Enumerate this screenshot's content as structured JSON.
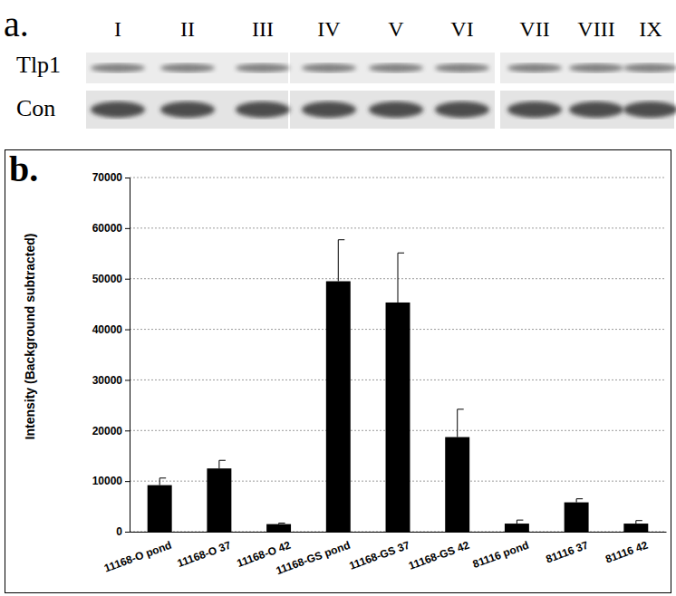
{
  "chart_data": {
    "type": "bar",
    "title": "b.",
    "y_label": "Intensity (Background subtracted)",
    "categories": [
      "11168-O pond",
      "11168-O 37",
      "11168-O 42",
      "11168-GS pond",
      "11168-GS 37",
      "11168-GS 42",
      "81116 pond",
      "81116 37",
      "81116 42"
    ],
    "values": [
      9200,
      12500,
      1500,
      49500,
      45300,
      18700,
      1600,
      5800,
      1600
    ],
    "errors": [
      1400,
      1600,
      200,
      8200,
      9800,
      5500,
      700,
      700,
      600
    ],
    "color": "#000000",
    "ylim": [
      0,
      70000
    ],
    "yticks": [
      0,
      10000,
      20000,
      30000,
      40000,
      50000,
      60000,
      70000
    ],
    "grid": true
  },
  "blot": {
    "label": "a.",
    "lanes": [
      "I",
      "II",
      "III",
      "IV",
      "V",
      "VI",
      "VII",
      "VIII",
      "IX"
    ],
    "rows": [
      "Tlp1",
      "Con"
    ]
  }
}
